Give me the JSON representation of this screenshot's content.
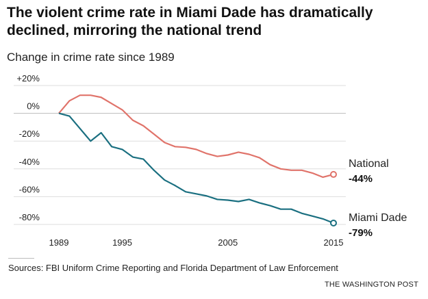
{
  "title": "The violent crime rate in Miami Dade has dramatically declined, mirroring the national trend",
  "subtitle": "Change in crime rate since 1989",
  "source": "Sources: FBI Uniform Crime Reporting and Florida Department of Law Enforcement",
  "credit": "THE WASHINGTON POST",
  "chart_data": {
    "type": "line",
    "x": [
      1989,
      1990,
      1991,
      1992,
      1993,
      1994,
      1995,
      1996,
      1997,
      1998,
      1999,
      2000,
      2001,
      2002,
      2003,
      2004,
      2005,
      2006,
      2007,
      2008,
      2009,
      2010,
      2011,
      2012,
      2013,
      2014,
      2015
    ],
    "series": [
      {
        "name": "National",
        "end_label": "-44%",
        "color": "#e0736a",
        "values": [
          0,
          9,
          13,
          13,
          11.5,
          7,
          2.5,
          -5,
          -9,
          -15,
          -21,
          -24,
          -24.5,
          -26,
          -29,
          -31,
          -30,
          -28,
          -29.5,
          -32,
          -37,
          -40,
          -41,
          -41,
          -43,
          -46,
          -44
        ]
      },
      {
        "name": "Miami Dade",
        "end_label": "-79%",
        "color": "#1a6f80",
        "values": [
          0,
          -2,
          -11,
          -20,
          -14,
          -24,
          -26,
          -31.5,
          -33,
          -41,
          -48,
          -52,
          -56.5,
          -58,
          -59.5,
          -62,
          -62.5,
          -63.5,
          -62,
          -64.5,
          -66.5,
          -69,
          -69,
          -72,
          -74,
          -76,
          -79
        ]
      }
    ],
    "xticks": [
      1989,
      1995,
      2005,
      2015
    ],
    "xtick_labels": [
      "1989",
      "1995",
      "2005",
      "2015"
    ],
    "yticks": [
      20,
      0,
      -20,
      -40,
      -60,
      -80
    ],
    "ytick_labels": [
      "+20%",
      "0%",
      "-20%",
      "-40%",
      "-60%",
      "-80%"
    ],
    "ylim": [
      -80,
      20
    ],
    "xlim": [
      1989,
      2015
    ],
    "grid": true,
    "xlabel": "",
    "ylabel": "Change in crime rate since 1989"
  }
}
